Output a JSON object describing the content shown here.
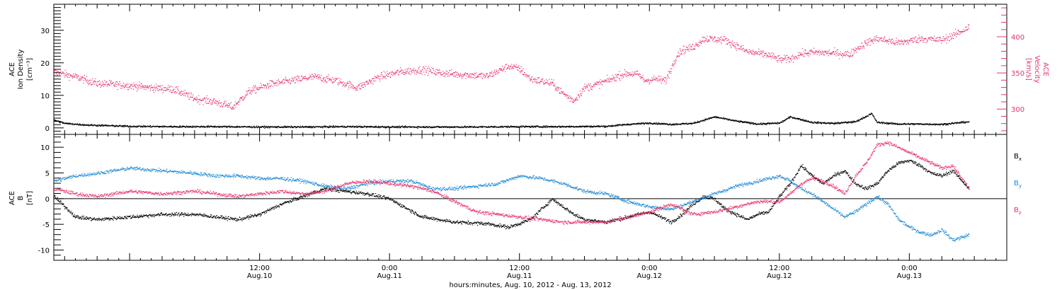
{
  "colors": {
    "black": "#000000",
    "red": "#e8336a",
    "blue": "#1f8ad8",
    "axis": "#000000"
  },
  "time_axis": {
    "range_hours": [
      -7.0,
      81.0
    ],
    "ticks": [
      {
        "hour": 12,
        "time": "12:00",
        "date": "Aug.10"
      },
      {
        "hour": 24,
        "time": "0:00",
        "date": "Aug.11"
      },
      {
        "hour": 36,
        "time": "12:00",
        "date": "Aug.11"
      },
      {
        "hour": 48,
        "time": "0:00",
        "date": "Aug.12"
      },
      {
        "hour": 60,
        "time": "12:00",
        "date": "Aug.12"
      },
      {
        "hour": 72,
        "time": "0:00",
        "date": "Aug.13"
      }
    ],
    "xlabel": "hours:minutes, Aug. 10, 2012 - Aug. 13, 2012"
  },
  "chart_data": [
    {
      "type": "scatter",
      "panel": "top",
      "left_ylabel": [
        "ACE",
        "Ion Density",
        "[cm⁻³]"
      ],
      "right_ylabel": [
        "ACE",
        "Velocity",
        "[km/s]"
      ],
      "left_ylim": [
        -2,
        38
      ],
      "right_ylim": [
        265,
        445
      ],
      "left_ticks": [
        0,
        10,
        20,
        30
      ],
      "right_ticks": [
        300,
        350,
        400
      ],
      "series": [
        {
          "name": "Velocity",
          "color": "#e8336a",
          "axis": "right",
          "x": [
            -7,
            -5,
            -3,
            0,
            2,
            4,
            6,
            8,
            9.5,
            11,
            13,
            15,
            17,
            19,
            20,
            21,
            23,
            25,
            27,
            29,
            31,
            33,
            35,
            36,
            37,
            39,
            40,
            41,
            42,
            43,
            44.5,
            45,
            46,
            47,
            47.5,
            48.5,
            49.5,
            50.5,
            51,
            52,
            53,
            55,
            57,
            59,
            60,
            61,
            62,
            63,
            65,
            66.5,
            67,
            68,
            69,
            70,
            71,
            73,
            75,
            76,
            77,
            77.5
          ],
          "y": [
            352,
            345,
            336,
            333,
            330,
            328,
            315,
            310,
            303,
            325,
            335,
            340,
            345,
            340,
            335,
            330,
            345,
            352,
            355,
            350,
            348,
            346,
            360,
            356,
            342,
            336,
            322,
            312,
            330,
            334,
            342,
            346,
            350,
            348,
            340,
            342,
            340,
            375,
            382,
            386,
            398,
            396,
            380,
            375,
            369,
            370,
            377,
            379,
            378,
            376,
            383,
            392,
            398,
            395,
            392,
            398,
            396,
            402,
            410,
            414
          ]
        },
        {
          "name": "Ion Density",
          "color": "#000000",
          "axis": "left",
          "x": [
            -7,
            -6,
            -4,
            -2,
            0,
            4,
            8,
            12,
            16,
            20,
            24,
            28,
            32,
            36,
            40,
            44,
            46,
            48,
            50,
            52,
            54,
            56,
            58,
            60,
            61,
            63,
            65,
            67,
            68.5,
            69,
            71,
            73,
            75,
            77.5
          ],
          "y": [
            2.5,
            1.5,
            1.0,
            0.8,
            0.6,
            0.5,
            0.5,
            0.4,
            0.4,
            0.5,
            0.4,
            0.4,
            0.4,
            0.5,
            0.5,
            0.6,
            1.2,
            1.6,
            1.2,
            1.5,
            3.5,
            2.2,
            1.3,
            1.6,
            3.5,
            1.8,
            1.5,
            2.0,
            4.5,
            1.8,
            1.3,
            1.3,
            1.2,
            2.0
          ]
        }
      ]
    },
    {
      "type": "scatter",
      "panel": "bottom",
      "left_ylabel": [
        "ACE",
        "B",
        "[nT]"
      ],
      "ylim": [
        -12,
        12.5
      ],
      "yticks": [
        -10,
        -5,
        0,
        5,
        10
      ],
      "zero_line": true,
      "series": [
        {
          "name": "Bx",
          "color": "#000000",
          "x": [
            -7,
            -5,
            -3,
            0,
            3,
            6,
            8,
            10,
            12,
            14,
            16,
            18,
            20,
            22,
            24,
            27,
            30,
            33,
            35,
            37,
            38,
            39,
            40,
            41,
            42,
            44,
            46,
            48,
            49,
            50,
            51,
            52,
            53,
            54,
            55,
            56,
            57,
            58,
            59,
            60,
            61,
            62,
            63,
            64,
            65,
            66,
            67,
            68,
            69,
            70,
            71,
            72,
            73,
            74,
            75,
            76,
            77.5
          ],
          "y": [
            0.5,
            -3.5,
            -4.0,
            -3.5,
            -3.0,
            -3.0,
            -3.5,
            -4.0,
            -3.0,
            -1.0,
            0.5,
            2.0,
            1.5,
            1.0,
            0.0,
            -3.5,
            -4.5,
            -4.8,
            -5.5,
            -4.0,
            -2.0,
            0.0,
            -1.5,
            -3.0,
            -4.0,
            -4.5,
            -3.5,
            -2.5,
            -3.5,
            -4.5,
            -3.0,
            -1.0,
            0.5,
            0.0,
            -2.0,
            -3.0,
            -4.0,
            -3.0,
            -2.5,
            0.5,
            3.0,
            6.5,
            4.5,
            3.0,
            4.5,
            5.5,
            3.0,
            2.0,
            3.0,
            5.5,
            7.0,
            7.5,
            6.5,
            5.0,
            4.5,
            5.5,
            2.0
          ]
        },
        {
          "name": "By",
          "color": "#1f8ad8",
          "x": [
            -7,
            -5,
            -3,
            0,
            3,
            6,
            8,
            10,
            12,
            14,
            16,
            18,
            20,
            22,
            24,
            26,
            28,
            30,
            32,
            34,
            36,
            38,
            40,
            42,
            44,
            46,
            48,
            50,
            52,
            54,
            56,
            58,
            60,
            61,
            62,
            63,
            64,
            65,
            66,
            67,
            68,
            69,
            70,
            71,
            72,
            73,
            74,
            75,
            76,
            77.5
          ],
          "y": [
            3.5,
            4.5,
            5.0,
            6.0,
            5.5,
            5.0,
            4.5,
            4.5,
            4.0,
            4.0,
            3.5,
            2.5,
            2.0,
            3.0,
            3.5,
            3.5,
            2.0,
            2.0,
            2.5,
            3.0,
            4.5,
            4.0,
            3.0,
            1.5,
            1.0,
            -0.5,
            -1.5,
            -2.0,
            -0.5,
            1.0,
            2.5,
            3.5,
            4.5,
            3.5,
            2.0,
            1.0,
            -0.5,
            -2.0,
            -3.5,
            -2.5,
            -1.0,
            0.5,
            -1.0,
            -4.0,
            -5.5,
            -6.5,
            -7.0,
            -6.0,
            -8.0,
            -7.0
          ]
        },
        {
          "name": "Bz",
          "color": "#e8336a",
          "x": [
            -7,
            -5,
            -3,
            0,
            3,
            6,
            8,
            10,
            12,
            14,
            16,
            18,
            20,
            22,
            24,
            26,
            28,
            30,
            32,
            34,
            36,
            38,
            40,
            42,
            44,
            46,
            48,
            50,
            52,
            54,
            56,
            58,
            60,
            61,
            62,
            63,
            64,
            65,
            66,
            67,
            68,
            69,
            70,
            71,
            72,
            73,
            74,
            75,
            76,
            77.5
          ],
          "y": [
            2.0,
            1.0,
            0.5,
            1.5,
            1.0,
            1.5,
            1.0,
            0.5,
            1.0,
            1.5,
            1.0,
            1.5,
            3.0,
            3.5,
            3.0,
            2.5,
            1.5,
            -0.5,
            -2.5,
            -3.0,
            -3.5,
            -4.0,
            -4.5,
            -4.5,
            -4.5,
            -3.5,
            -2.5,
            -1.0,
            -3.0,
            -2.5,
            -1.5,
            -0.5,
            -0.5,
            1.0,
            3.0,
            4.0,
            3.5,
            2.5,
            1.0,
            4.5,
            7.0,
            10.5,
            11.0,
            10.0,
            9.0,
            8.0,
            7.0,
            6.0,
            6.5,
            2.0
          ]
        }
      ],
      "legend": [
        {
          "label": "B",
          "sub": "x",
          "color": "#000000"
        },
        {
          "label": "B",
          "sub": "y",
          "color": "#1f8ad8"
        },
        {
          "label": "B",
          "sub": "z",
          "color": "#e8336a"
        }
      ]
    }
  ]
}
